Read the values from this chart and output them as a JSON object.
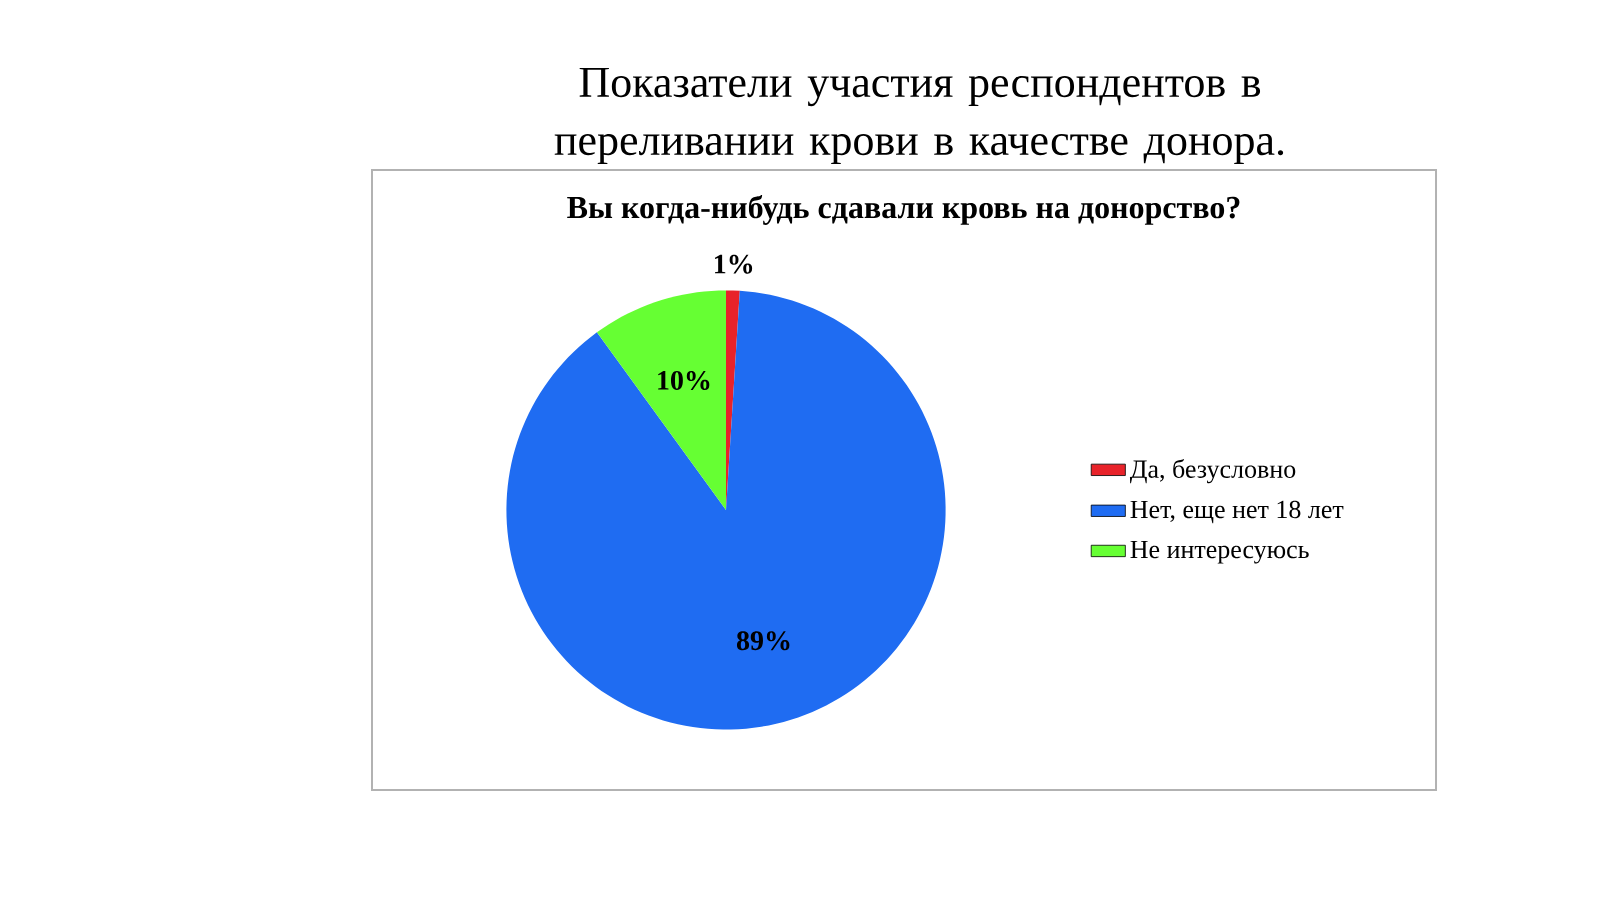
{
  "chart_data": {
    "type": "pie",
    "title": "Показатели участия респондентов в переливании крови в качестве донора.",
    "subtitle": "Вы когда-нибудь сдавали кровь на донорство?",
    "categories": [
      "Да, безусловно",
      "Нет, еще нет 18 лет",
      "Не интересуюсь"
    ],
    "values": [
      1,
      89,
      10
    ],
    "value_labels": [
      "1%",
      "89%",
      "10%"
    ],
    "colors": [
      "#e8232a",
      "#1f6cf2",
      "#66ff33"
    ],
    "legend": "right"
  }
}
